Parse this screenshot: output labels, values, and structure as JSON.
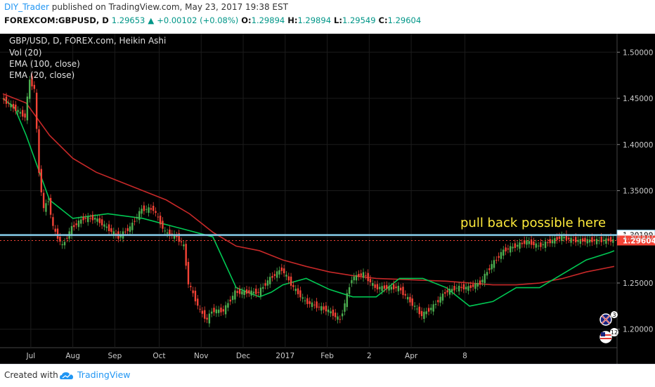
{
  "header": {
    "author": "DIY_Trader",
    "published": "published on TradingView.com, May 23, 2017 19:38 EST",
    "symbol": "FOREXCOM:GBPUSD, D",
    "last": "1.29653",
    "change": "+0.00102 (+0.08%)",
    "o_label": "O:",
    "o": "1.29894",
    "h_label": "H:",
    "h": "1.29894",
    "l_label": "L:",
    "l": "1.29549",
    "c_label": "C:",
    "c": "1.29604"
  },
  "legend": {
    "title": "GBP/USD, D, FOREX.com, Heikin Ashi",
    "vol": "Vol (20)",
    "ema100": "EMA (100, close)",
    "ema20": "EMA (20, close)"
  },
  "annotation": "pull back possible here",
  "footer": {
    "created": "Created with",
    "brand": "TradingView"
  },
  "colors": {
    "bg": "#000000",
    "up": "#4caf50",
    "down": "#f44336",
    "ema20": "#00c853",
    "ema100": "#c62828",
    "hline": "#87ceeb",
    "annotation": "#ffeb3b"
  },
  "chart_data": {
    "type": "line",
    "title": "GBP/USD, D, FOREX.com, Heikin Ashi",
    "ylim": [
      1.18,
      1.52
    ],
    "y_ticks": [
      "1.50000",
      "1.45000",
      "1.40000",
      "1.35000",
      "1.30000",
      "1.25000",
      "1.20000"
    ],
    "x_ticks": [
      "Jul",
      "Aug",
      "Sep",
      "Oct",
      "Nov",
      "Dec",
      "2017",
      "Feb",
      "2",
      "Apr",
      "8"
    ],
    "last_price_label": "1.29604",
    "hline_label": "1.30199",
    "hline_value": 1.30199,
    "last_value": 1.29604,
    "series": [
      {
        "name": "EMA (20, close)",
        "type": "line",
        "x": [
          0,
          5,
          10,
          20,
          30,
          45,
          60,
          75,
          90,
          100,
          110,
          115,
          120,
          130,
          140,
          150,
          160,
          170,
          180,
          190,
          200,
          210,
          220,
          230,
          240,
          250,
          260,
          262
        ],
        "values": [
          1.45,
          1.44,
          1.41,
          1.34,
          1.32,
          1.325,
          1.32,
          1.31,
          1.3,
          1.245,
          1.235,
          1.24,
          1.248,
          1.255,
          1.243,
          1.235,
          1.235,
          1.255,
          1.255,
          1.245,
          1.225,
          1.23,
          1.245,
          1.245,
          1.26,
          1.275,
          1.283,
          1.285
        ]
      },
      {
        "name": "EMA (100, close)",
        "type": "line",
        "x": [
          0,
          10,
          20,
          30,
          40,
          50,
          60,
          70,
          80,
          90,
          100,
          110,
          120,
          130,
          140,
          150,
          160,
          170,
          180,
          190,
          200,
          210,
          220,
          230,
          240,
          250,
          262
        ],
        "values": [
          1.455,
          1.445,
          1.41,
          1.385,
          1.37,
          1.36,
          1.35,
          1.34,
          1.325,
          1.305,
          1.29,
          1.285,
          1.275,
          1.268,
          1.262,
          1.258,
          1.255,
          1.254,
          1.253,
          1.252,
          1.25,
          1.248,
          1.248,
          1.25,
          1.255,
          1.262,
          1.268
        ]
      },
      {
        "name": "Heikin Ashi close",
        "type": "candles",
        "x": [
          0,
          5,
          10,
          12,
          14,
          16,
          18,
          20,
          22,
          24,
          26,
          30,
          35,
          40,
          45,
          50,
          55,
          60,
          65,
          70,
          75,
          78,
          80,
          85,
          88,
          90,
          95,
          100,
          105,
          110,
          115,
          120,
          125,
          130,
          135,
          140,
          145,
          150,
          155,
          160,
          165,
          170,
          175,
          180,
          185,
          190,
          195,
          200,
          205,
          210,
          215,
          220,
          225,
          230,
          235,
          240,
          245,
          250,
          255,
          260,
          262
        ],
        "values": [
          1.45,
          1.44,
          1.43,
          1.47,
          1.46,
          1.37,
          1.33,
          1.34,
          1.31,
          1.3,
          1.29,
          1.31,
          1.32,
          1.32,
          1.31,
          1.3,
          1.31,
          1.33,
          1.33,
          1.305,
          1.3,
          1.29,
          1.25,
          1.22,
          1.21,
          1.22,
          1.22,
          1.24,
          1.24,
          1.24,
          1.255,
          1.265,
          1.245,
          1.23,
          1.225,
          1.22,
          1.21,
          1.255,
          1.26,
          1.245,
          1.245,
          1.245,
          1.23,
          1.215,
          1.225,
          1.24,
          1.245,
          1.245,
          1.25,
          1.27,
          1.285,
          1.29,
          1.295,
          1.29,
          1.295,
          1.3,
          1.296,
          1.296,
          1.296,
          1.2965,
          1.296
        ]
      }
    ]
  }
}
